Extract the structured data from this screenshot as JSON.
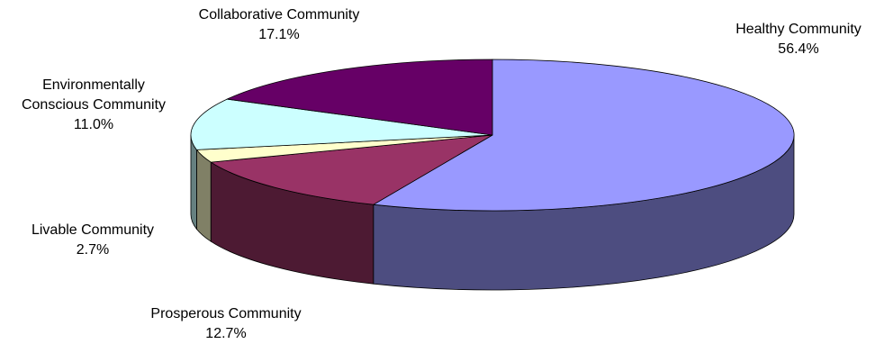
{
  "chart_data": {
    "type": "pie",
    "style": "3d",
    "title": "",
    "legend": "none",
    "slices": [
      {
        "label": "Healthy Community",
        "display": "56.4%",
        "value": 56.4,
        "color": "#9999FF",
        "side": "#4D4D80"
      },
      {
        "label": "Prosperous Community",
        "display": "12.7%",
        "value": 12.7,
        "color": "#993366",
        "side": "#4D1A33"
      },
      {
        "label": "Livable Community",
        "display": "2.7%",
        "value": 2.7,
        "color": "#FFFFCC",
        "side": "#808066"
      },
      {
        "label": "Environmentally Conscious Community",
        "display": "11.0%",
        "value": 11.0,
        "color": "#CCFFFF",
        "side": "#668080"
      },
      {
        "label": "Collaborative Community",
        "display": "17.1%",
        "value": 17.1,
        "color": "#660066",
        "side": "#330033"
      }
    ],
    "label_lines": {
      "environmental": [
        "Environmentally",
        "Conscious Community"
      ]
    }
  }
}
